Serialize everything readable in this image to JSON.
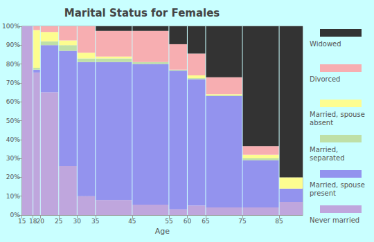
{
  "chart_data": {
    "type": "mosaic",
    "title": "Marital Status for Females",
    "xlabel": "Age",
    "bins": [
      15,
      18,
      20,
      25,
      30,
      35,
      45,
      55,
      60,
      65,
      75,
      85,
      91.4
    ],
    "xlim": [
      15,
      91.4
    ],
    "xticks": [
      15,
      18,
      20,
      25,
      30,
      35,
      45,
      55,
      60,
      65,
      75,
      85
    ],
    "ylim": [
      0,
      100
    ],
    "yticks": [
      {
        "value": 0,
        "label": "0%"
      },
      {
        "value": 10,
        "label": "10%"
      },
      {
        "value": 20,
        "label": "20%"
      },
      {
        "value": 30,
        "label": "30%"
      },
      {
        "value": 40,
        "label": "40%"
      },
      {
        "value": 50,
        "label": "50%"
      },
      {
        "value": 60,
        "label": "60%"
      },
      {
        "value": 70,
        "label": "70%"
      },
      {
        "value": 80,
        "label": "80%"
      },
      {
        "value": 90,
        "label": "90%"
      },
      {
        "value": 100,
        "label": "100%"
      }
    ],
    "stacked": true,
    "grid": true,
    "legend": "right",
    "series": [
      {
        "name": "Never married",
        "color": "#bfa6dd",
        "values": [
          100,
          75.5,
          65,
          26,
          10,
          8,
          5.5,
          3,
          5,
          4,
          4,
          7
        ]
      },
      {
        "name": "Married, spouse present",
        "color": "#9393ee",
        "values": [
          0,
          1.5,
          25,
          61,
          71,
          73,
          74.5,
          73.5,
          67,
          59,
          25,
          7
        ]
      },
      {
        "name": "Married, separated",
        "color": "#bfe0a7",
        "values": [
          0,
          1,
          2,
          3,
          2,
          2,
          1,
          0.5,
          0.5,
          0.5,
          1,
          0
        ]
      },
      {
        "name": "Married, spouse absent",
        "color": "#fdfd90",
        "values": [
          0,
          20,
          5,
          2.5,
          3,
          1,
          0,
          0,
          1.5,
          0.5,
          2,
          6
        ]
      },
      {
        "name": "Divorced",
        "color": "#f7aeb1",
        "values": [
          0,
          2,
          3,
          7.5,
          14,
          13.5,
          16.5,
          13.5,
          11.5,
          9,
          4.5,
          0
        ]
      },
      {
        "name": "Widowed",
        "color": "#333333",
        "values": [
          0,
          0,
          0,
          0,
          0,
          2.5,
          2.5,
          9.5,
          14.5,
          27,
          63.5,
          80
        ]
      }
    ]
  }
}
